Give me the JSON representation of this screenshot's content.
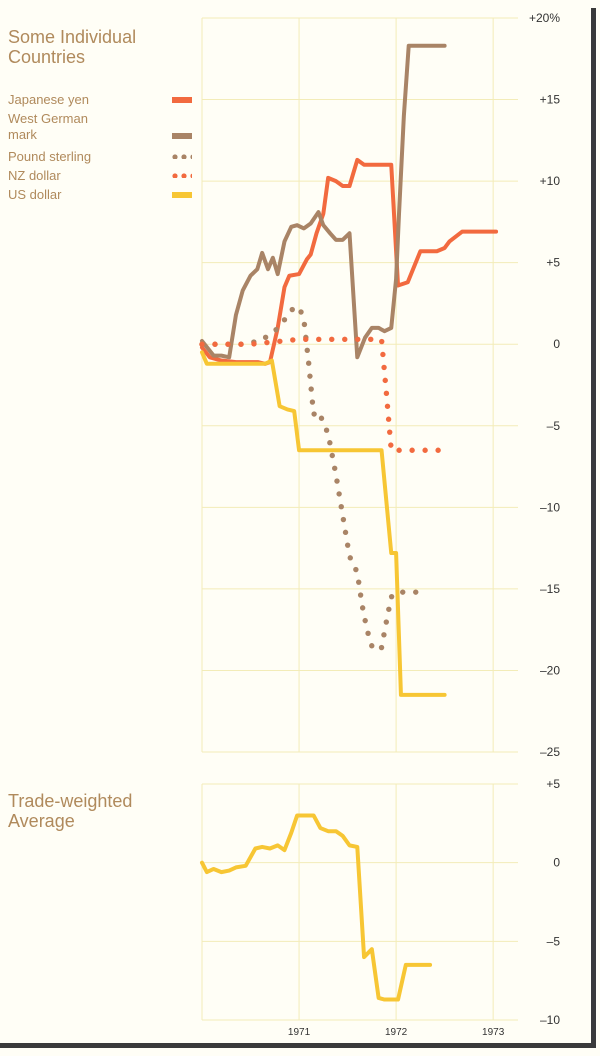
{
  "colors": {
    "yen": "#f26a3f",
    "mark": "#a98466",
    "sterling": "#a98466",
    "nz": "#f26a3f",
    "usd": "#f7c634",
    "grid": "#f3ecb8",
    "title": "#b08a5c"
  },
  "chart_data": [
    {
      "type": "line",
      "title": "Some Individual Countries",
      "ylim": [
        -25,
        20
      ],
      "y_ticks": [
        20,
        15,
        10,
        5,
        0,
        -5,
        -10,
        -15,
        -20,
        -25
      ],
      "y_tick_labels": [
        "+20%",
        "+15",
        "+10",
        "+5",
        "0",
        "–5",
        "–10",
        "–15",
        "–20",
        "–25"
      ],
      "x_ticks": [
        1971,
        1972,
        1973
      ],
      "xlim": [
        1970.0,
        1973.05
      ],
      "grid": true,
      "legend_position": "top-left",
      "series": [
        {
          "name": "Japanese yen",
          "style": "solid",
          "x": [
            1970.0,
            1970.08,
            1970.2,
            1970.35,
            1970.5,
            1970.58,
            1970.65,
            1970.7,
            1970.78,
            1970.85,
            1970.9,
            1971.0,
            1971.08,
            1971.12,
            1971.18,
            1971.25,
            1971.3,
            1971.38,
            1971.45,
            1971.52,
            1971.6,
            1971.67,
            1971.72,
            1971.78,
            1971.85,
            1971.95,
            1972.02,
            1972.12,
            1972.25,
            1972.42,
            1972.5,
            1972.55,
            1972.68,
            1972.75,
            1972.85,
            1972.95,
            1973.03
          ],
          "values": [
            -0.2,
            -0.8,
            -1.0,
            -1.1,
            -1.1,
            -1.1,
            -1.2,
            -1.1,
            1.0,
            3.5,
            4.2,
            4.3,
            5.2,
            5.5,
            6.8,
            8.0,
            10.2,
            10.0,
            9.7,
            9.7,
            11.3,
            11.0,
            11.0,
            11.0,
            11.0,
            11.0,
            3.6,
            3.8,
            5.7,
            5.7,
            5.9,
            6.3,
            6.9,
            6.9,
            6.9,
            6.9,
            6.9
          ],
          "x_source_note": ""
        },
        {
          "name": "West German mark",
          "style": "solid",
          "x": [
            1970.0,
            1970.12,
            1970.2,
            1970.28,
            1970.35,
            1970.42,
            1970.5,
            1970.57,
            1970.62,
            1970.68,
            1970.73,
            1970.78,
            1970.85,
            1970.92,
            1970.98,
            1971.05,
            1971.12,
            1971.2,
            1971.25,
            1971.32,
            1971.38,
            1971.45,
            1971.52,
            1971.6,
            1971.68,
            1971.75,
            1971.82,
            1971.88,
            1971.95,
            1972.0,
            1972.03,
            1972.08,
            1972.13,
            1972.2,
            1972.28,
            1972.35,
            1972.42,
            1972.5
          ],
          "values": [
            0.2,
            -0.7,
            -0.7,
            -0.8,
            1.8,
            3.3,
            4.2,
            4.6,
            5.6,
            4.6,
            5.3,
            4.3,
            6.3,
            7.2,
            7.3,
            7.1,
            7.4,
            8.1,
            7.3,
            6.8,
            6.4,
            6.4,
            6.8,
            -0.8,
            0.4,
            1.0,
            1.0,
            0.8,
            1.0,
            4.0,
            8.0,
            14.0,
            18.3,
            18.3,
            18.3,
            18.3,
            18.3,
            18.3
          ],
          "x_source_note": ""
        },
        {
          "name": "Pound sterling",
          "style": "dotted",
          "x": [
            1970.0,
            1970.2,
            1970.4,
            1970.6,
            1970.75,
            1970.85,
            1970.92,
            1971.0,
            1971.05,
            1971.1,
            1971.15,
            1971.2,
            1971.3,
            1971.38,
            1971.45,
            1971.52,
            1971.6,
            1971.65,
            1971.7,
            1971.75,
            1971.8,
            1971.85,
            1971.9,
            1971.95,
            1972.0,
            1972.05,
            1972.12,
            1972.2,
            1972.25
          ],
          "values": [
            0.0,
            0.0,
            0.0,
            0.2,
            0.8,
            1.5,
            2.1,
            2.3,
            1.5,
            -1.2,
            -4.3,
            -4.1,
            -5.5,
            -8.0,
            -10.5,
            -13.0,
            -14.0,
            -16.0,
            -17.5,
            -18.5,
            -18.8,
            -18.6,
            -17.0,
            -15.5,
            -15.2,
            -15.2,
            -15.2,
            -15.2,
            -15.2
          ],
          "x_source_note": ""
        },
        {
          "name": "NZ dollar",
          "style": "dotted",
          "x": [
            1970.0,
            1970.5,
            1971.0,
            1971.5,
            1971.85,
            1971.9,
            1971.95,
            1972.0,
            1972.05,
            1972.25,
            1972.5
          ],
          "values": [
            0.0,
            0.0,
            0.3,
            0.3,
            0.3,
            -3.0,
            -6.5,
            -6.5,
            -6.5,
            -6.5,
            -6.5
          ],
          "x_source_note": ""
        },
        {
          "name": "US dollar",
          "style": "solid",
          "x": [
            1970.0,
            1970.05,
            1970.3,
            1970.55,
            1970.65,
            1970.72,
            1970.8,
            1970.88,
            1970.95,
            1971.0,
            1971.05,
            1971.5,
            1971.85,
            1971.95,
            1972.0,
            1972.05,
            1972.1,
            1972.5
          ],
          "values": [
            -0.5,
            -1.2,
            -1.2,
            -1.2,
            -1.2,
            -1.0,
            -3.8,
            -4.0,
            -4.1,
            -6.5,
            -6.5,
            -6.5,
            -6.5,
            -12.8,
            -12.8,
            -21.5,
            -21.5,
            -21.5
          ],
          "x_source_note": ""
        }
      ]
    },
    {
      "type": "line",
      "title": "Trade-weighted Average",
      "ylim": [
        -10,
        5
      ],
      "y_ticks": [
        5,
        0,
        -5,
        -10
      ],
      "y_tick_labels": [
        "+5",
        "0",
        "–5",
        "–10"
      ],
      "x_ticks": [
        1971,
        1972,
        1973
      ],
      "x_tick_labels": [
        "1971",
        "1972",
        "1973"
      ],
      "grid": true,
      "series": [
        {
          "name": "",
          "x": [
            1970.0,
            1970.05,
            1970.12,
            1970.2,
            1970.28,
            1970.35,
            1970.45,
            1970.55,
            1970.62,
            1970.7,
            1970.78,
            1970.85,
            1970.92,
            1970.98,
            1971.08,
            1971.15,
            1971.22,
            1971.3,
            1971.38,
            1971.45,
            1971.52,
            1971.6,
            1971.67,
            1971.75,
            1971.82,
            1971.88,
            1971.95,
            1972.02,
            1972.1,
            1972.25,
            1972.35
          ],
          "values": [
            0.0,
            -0.6,
            -0.4,
            -0.6,
            -0.5,
            -0.3,
            -0.2,
            0.9,
            1.0,
            0.9,
            1.1,
            0.8,
            1.9,
            3.0,
            3.0,
            3.0,
            2.2,
            2.0,
            2.0,
            1.7,
            1.1,
            1.0,
            -6.0,
            -5.5,
            -8.6,
            -8.7,
            -8.7,
            -8.7,
            -6.5,
            -6.5,
            -6.5
          ]
        }
      ]
    }
  ],
  "titles": {
    "top": "Some Individual\nCountries",
    "bottom": "Trade-weighted\nAverage"
  },
  "legend": [
    {
      "label": "Japanese yen",
      "style": "solid",
      "color": "#f26a3f"
    },
    {
      "label": "West German\nmark",
      "style": "solid",
      "color": "#a98466"
    },
    {
      "label": "Pound sterling",
      "style": "dotted",
      "color": "#a98466"
    },
    {
      "label": "NZ dollar",
      "style": "dotted",
      "color": "#f26a3f"
    },
    {
      "label": "US dollar",
      "style": "solid",
      "color": "#f7c634"
    }
  ]
}
